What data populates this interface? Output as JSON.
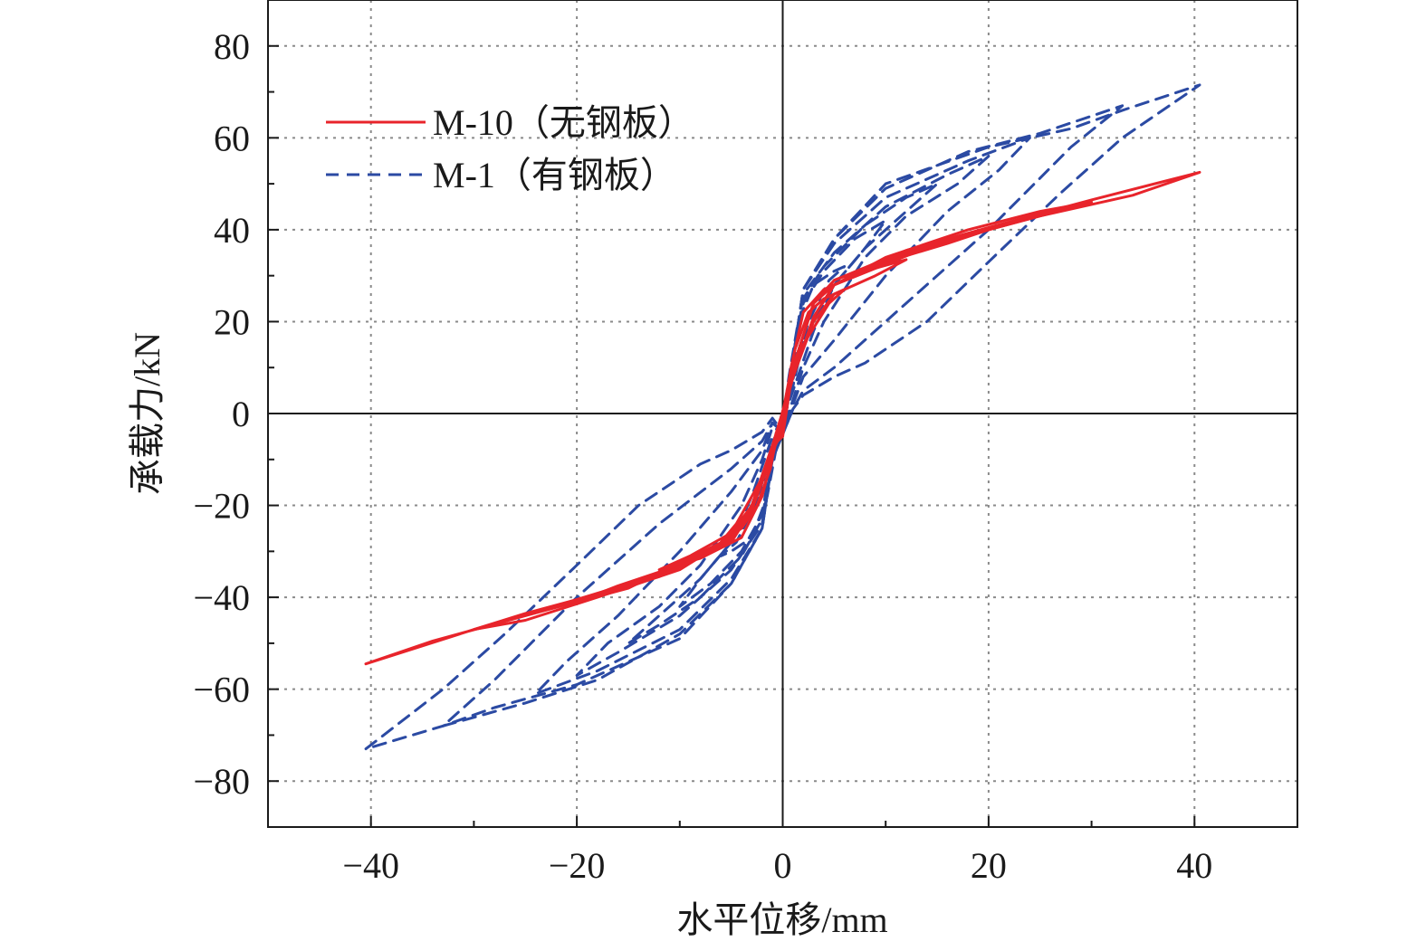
{
  "chart_data": {
    "type": "line",
    "xlabel": "水平位移/mm",
    "ylabel": "承载力/kN",
    "xlim": [
      -50,
      50
    ],
    "ylim": [
      -90,
      90
    ],
    "xticks": [
      -40,
      -20,
      0,
      20,
      40
    ],
    "yticks": [
      -80,
      -60,
      -40,
      -20,
      0,
      20,
      40,
      60,
      80
    ],
    "xtick_labels": [
      "−40",
      "−20",
      "0",
      "20",
      "40"
    ],
    "ytick_labels": [
      "−80",
      "−60",
      "−40",
      "−20",
      "0",
      "20",
      "40",
      "60",
      "80"
    ],
    "grid": true,
    "legend_position": "top-left",
    "series": [
      {
        "name": "M-10（无钢板）",
        "color": "#e8242b",
        "style": "solid",
        "loops": [
          {
            "x": [
              0.0,
              0.5,
              1.2,
              2.5,
              4.0,
              6.0,
              4.5,
              2.0,
              0.5,
              -0.5,
              -1.2,
              -2.5,
              -4.0,
              -6.0,
              -4.5,
              -2.0,
              -0.5,
              0.0
            ],
            "y": [
              0.0,
              6.0,
              14.0,
              22.0,
              25.0,
              27.0,
              24.0,
              15.0,
              5.0,
              -4.0,
              -12.0,
              -20.0,
              -25.0,
              -28.0,
              -24.0,
              -14.0,
              -4.0,
              0.0
            ]
          },
          {
            "x": [
              0.0,
              0.8,
              2.0,
              4.0,
              8.0,
              12.0,
              9.0,
              5.0,
              3.0,
              1.0,
              -0.5,
              -2.0,
              -4.0,
              -8.0,
              -12.0,
              -9.0,
              -5.0,
              -3.0,
              -1.0,
              0.0
            ],
            "y": [
              -2.0,
              10.0,
              22.0,
              27.0,
              31.0,
              33.5,
              30.0,
              26.0,
              20.0,
              8.0,
              -5.0,
              -18.0,
              -27.0,
              -31.5,
              -34.0,
              -31.0,
              -26.0,
              -20.0,
              -8.0,
              -2.0
            ]
          },
          {
            "x": [
              0.0,
              1.0,
              3.0,
              5.0,
              10.0,
              16.0,
              20.0,
              16.0,
              10.0,
              5.0,
              3.0,
              1.0,
              -1.0,
              -3.0,
              -5.0,
              -10.0,
              -16.0,
              -20.0,
              -16.0,
              -10.0,
              -5.0,
              -3.0,
              -1.0,
              0.0
            ],
            "y": [
              -3.0,
              10.0,
              24.0,
              28.0,
              33.0,
              37.0,
              40.0,
              37.5,
              33.0,
              28.0,
              21.0,
              8.0,
              -7.0,
              -20.0,
              -27.0,
              -33.0,
              -37.5,
              -41.0,
              -38.0,
              -33.0,
              -27.0,
              -20.0,
              -8.0,
              -3.0
            ]
          },
          {
            "x": [
              0.0,
              1.0,
              3.0,
              5.0,
              12.0,
              20.0,
              25.0,
              30.0,
              25.0,
              18.0,
              10.0,
              5.0,
              3.0,
              1.0,
              -1.0,
              -3.0,
              -5.0,
              -12.0,
              -20.0,
              -25.0,
              -30.0,
              -25.0,
              -18.0,
              -10.0,
              -5.0,
              -3.0,
              -1.0,
              0.0
            ],
            "y": [
              -4.0,
              10.0,
              24.0,
              29.0,
              35.0,
              40.0,
              43.0,
              46.0,
              44.0,
              40.0,
              34.0,
              28.0,
              21.0,
              8.0,
              -8.0,
              -20.0,
              -27.5,
              -35.0,
              -40.5,
              -43.5,
              -47.0,
              -45.0,
              -40.0,
              -34.0,
              -27.0,
              -20.0,
              -8.0,
              -4.0
            ]
          },
          {
            "x": [
              0.0,
              1.0,
              3.0,
              5.0,
              12.0,
              20.0,
              30.0,
              40.5,
              34.0,
              25.0,
              15.0,
              5.0,
              3.0,
              1.0,
              -1.0,
              -3.0,
              -5.0,
              -12.0,
              -20.0,
              -30.0,
              -40.5,
              -34.0,
              -25.0,
              -15.0,
              -5.0,
              -3.0,
              -1.0,
              0.0
            ],
            "y": [
              -5.0,
              10.0,
              24.0,
              29.0,
              35.5,
              40.5,
              46.5,
              52.5,
              47.5,
              43.0,
              37.0,
              28.0,
              21.0,
              8.0,
              -9.0,
              -21.0,
              -28.0,
              -35.5,
              -40.5,
              -47.0,
              -54.5,
              -49.5,
              -44.0,
              -38.0,
              -27.0,
              -20.0,
              -7.0,
              -5.0
            ]
          }
        ]
      },
      {
        "name": "M-1（有钢板）",
        "color": "#2b4aa3",
        "style": "dashed",
        "loops": [
          {
            "x": [
              0.0,
              0.6,
              1.5,
              3.0,
              5.0,
              6.0,
              4.5,
              2.5,
              1.5,
              0.5,
              -0.5,
              -1.5,
              -3.0,
              -5.0,
              -6.0,
              -4.5,
              -2.5,
              -1.5,
              -0.5,
              0.0
            ],
            "y": [
              -2.0,
              8.0,
              20.0,
              28.0,
              31.0,
              32.0,
              29.0,
              20.0,
              12.0,
              3.0,
              -6.0,
              -18.0,
              -27.0,
              -30.0,
              -31.0,
              -28.0,
              -19.0,
              -11.0,
              -3.0,
              -2.0
            ]
          },
          {
            "x": [
              0.0,
              1.0,
              2.0,
              4.0,
              7.0,
              10.0,
              8.0,
              5.0,
              3.0,
              1.0,
              -1.0,
              -2.0,
              -4.0,
              -7.0,
              -10.0,
              -8.0,
              -5.0,
              -3.0,
              -1.0,
              0.0
            ],
            "y": [
              -3.0,
              10.0,
              24.0,
              31.0,
              38.0,
              42.0,
              36.0,
              28.0,
              18.0,
              5.0,
              -8.0,
              -22.0,
              -30.0,
              -37.0,
              -42.0,
              -36.0,
              -28.0,
              -18.0,
              -5.0,
              -3.0
            ]
          },
          {
            "x": [
              0.0,
              1.0,
              2.0,
              4.0,
              8.0,
              12.0,
              15.0,
              12.0,
              8.0,
              5.0,
              2.0,
              1.0,
              -1.0,
              -2.0,
              -4.0,
              -8.0,
              -12.0,
              -15.0,
              -12.0,
              -8.0,
              -5.0,
              -2.0,
              -1.0,
              0.0
            ],
            "y": [
              -3.0,
              12.0,
              25.0,
              32.0,
              41.0,
              47.0,
              50.0,
              44.0,
              36.0,
              28.0,
              16.0,
              6.0,
              -9.0,
              -23.0,
              -31.0,
              -40.0,
              -46.0,
              -50.0,
              -44.0,
              -36.0,
              -28.0,
              -16.0,
              -6.0,
              -3.0
            ]
          },
          {
            "x": [
              0.0,
              1.0,
              2.0,
              5.0,
              10.0,
              16.0,
              20.0,
              17.0,
              12.0,
              8.0,
              4.0,
              2.0,
              1.0,
              -1.0,
              -2.0,
              -5.0,
              -10.0,
              -16.0,
              -20.0,
              -17.0,
              -12.0,
              -8.0,
              -4.0,
              -2.0,
              -1.0,
              0.0
            ],
            "y": [
              -4.0,
              12.0,
              26.0,
              35.0,
              45.0,
              52.0,
              56.0,
              50.0,
              43.0,
              34.0,
              20.0,
              10.0,
              3.0,
              -10.0,
              -24.0,
              -34.0,
              -44.0,
              -52.0,
              -57.0,
              -50.0,
              -42.0,
              -33.0,
              -20.0,
              -10.0,
              -3.0,
              -4.0
            ]
          },
          {
            "x": [
              0.0,
              1.0,
              2.0,
              5.0,
              10.0,
              18.0,
              24.0,
              21.0,
              16.0,
              10.0,
              5.0,
              2.0,
              1.0,
              -1.0,
              -2.0,
              -5.0,
              -10.0,
              -18.0,
              -24.0,
              -21.0,
              -16.0,
              -10.0,
              -5.0,
              -2.0,
              -1.0,
              0.0
            ],
            "y": [
              -4.0,
              12.0,
              27.0,
              37.0,
              47.0,
              55.0,
              60.0,
              53.0,
              44.0,
              30.0,
              16.0,
              8.0,
              2.0,
              -10.0,
              -25.0,
              -36.0,
              -47.0,
              -56.0,
              -61.0,
              -54.0,
              -44.0,
              -30.0,
              -17.0,
              -8.0,
              -2.0,
              -4.0
            ]
          },
          {
            "x": [
              0.0,
              1.0,
              2.0,
              5.0,
              10.0,
              18.0,
              25.0,
              33.0,
              28.0,
              20.0,
              12.0,
              5.0,
              2.0,
              1.0,
              -1.0,
              -2.0,
              -5.0,
              -10.0,
              -18.0,
              -25.0,
              -33.0,
              -28.0,
              -20.0,
              -12.0,
              -5.0,
              -2.0,
              -1.0,
              0.0
            ],
            "y": [
              -4.0,
              12.0,
              27.0,
              38.0,
              49.0,
              57.0,
              61.0,
              67.0,
              58.0,
              40.0,
              24.0,
              10.0,
              5.0,
              1.0,
              -10.0,
              -25.0,
              -37.0,
              -48.0,
              -58.0,
              -63.0,
              -68.0,
              -58.0,
              -40.0,
              -24.0,
              -12.0,
              -6.0,
              -2.0,
              -4.0
            ]
          },
          {
            "x": [
              0.0,
              1.0,
              2.0,
              5.0,
              10.0,
              20.0,
              28.0,
              33.0,
              40.5,
              33.0,
              27.0,
              20.0,
              14.0,
              8.0,
              5.0,
              2.0,
              1.0,
              -1.0,
              -2.0,
              -5.0,
              -10.0,
              -20.0,
              -28.0,
              -33.0,
              -40.5,
              -33.0,
              -27.0,
              -20.0,
              -14.0,
              -8.0,
              -5.0,
              -2.0,
              -1.0,
              0.0
            ],
            "y": [
              -4.0,
              12.0,
              27.0,
              38.0,
              50.0,
              58.0,
              62.0,
              66.0,
              71.5,
              60.0,
              48.0,
              33.0,
              20.0,
              11.0,
              8.0,
              4.0,
              1.0,
              -10.0,
              -25.0,
              -37.0,
              -49.0,
              -59.0,
              -64.0,
              -68.0,
              -73.0,
              -60.0,
              -48.0,
              -33.0,
              -20.0,
              -11.0,
              -8.0,
              -4.0,
              -1.0,
              -4.0
            ]
          }
        ]
      }
    ]
  }
}
